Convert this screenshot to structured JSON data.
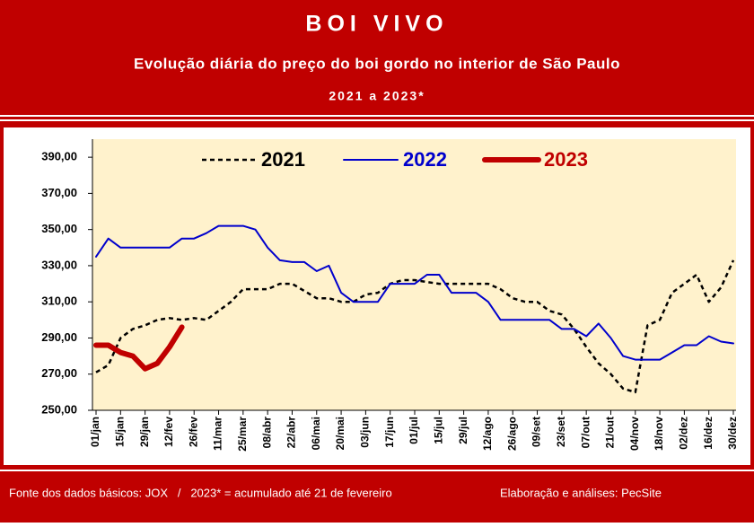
{
  "header": {
    "title": "BOI VIVO",
    "subtitle": "Evolução diária do preço do boi gordo no interior de São Paulo",
    "period": "2021 a 2023*"
  },
  "chart_data": {
    "type": "line",
    "categories": [
      "01/jan",
      null,
      "15/jan",
      null,
      "29/jan",
      null,
      "12/fev",
      null,
      "26/fev",
      null,
      "11/mar",
      null,
      "25/mar",
      null,
      "08/abr",
      null,
      "22/abr",
      null,
      "06/mai",
      null,
      "20/mai",
      null,
      "03/jun",
      null,
      "17/jun",
      null,
      "01/jul",
      null,
      "15/jul",
      null,
      "29/jul",
      null,
      "12/ago",
      null,
      "26/ago",
      null,
      "09/set",
      null,
      "23/set",
      null,
      "07/out",
      null,
      "21/out",
      null,
      "04/nov",
      null,
      "18/nov",
      null,
      "02/dez",
      null,
      "16/dez",
      null,
      "30/dez"
    ],
    "series": [
      {
        "name": "2021",
        "color": "#000000",
        "dashed": true,
        "width": 2.5,
        "values": [
          271,
          275,
          290,
          295,
          297,
          300,
          301,
          300,
          301,
          300,
          305,
          310,
          317,
          317,
          317,
          320,
          320,
          316,
          312,
          312,
          310,
          310,
          314,
          315,
          320,
          322,
          322,
          321,
          320,
          320,
          320,
          320,
          320,
          317,
          312,
          310,
          310,
          305,
          303,
          295,
          285,
          276,
          270,
          262,
          260,
          297,
          300,
          315,
          320,
          325,
          310,
          318,
          333
        ]
      },
      {
        "name": "2022",
        "color": "#0000cc",
        "dashed": false,
        "width": 2,
        "values": [
          335,
          345,
          340,
          340,
          340,
          340,
          340,
          345,
          345,
          348,
          352,
          352,
          352,
          350,
          340,
          333,
          332,
          332,
          327,
          330,
          315,
          310,
          310,
          310,
          320,
          320,
          320,
          325,
          325,
          315,
          315,
          315,
          310,
          300,
          300,
          300,
          300,
          300,
          295,
          295,
          291,
          298,
          290,
          280,
          278,
          278,
          278,
          282,
          286,
          286,
          291,
          288,
          287
        ]
      },
      {
        "name": "2023",
        "color": "#c00000",
        "dashed": false,
        "width": 6,
        "values": [
          286,
          286,
          282,
          280,
          273,
          276,
          285,
          296,
          null,
          null,
          null,
          null,
          null,
          null,
          null,
          null,
          null,
          null,
          null,
          null,
          null,
          null,
          null,
          null,
          null,
          null,
          null,
          null,
          null,
          null,
          null,
          null,
          null,
          null,
          null,
          null,
          null,
          null,
          null,
          null,
          null,
          null,
          null,
          null,
          null,
          null,
          null,
          null,
          null,
          null,
          null,
          null,
          null
        ]
      }
    ],
    "ylim": [
      250,
      400
    ],
    "yticks": [
      {
        "value": 250,
        "label": "250,00"
      },
      {
        "value": 270,
        "label": "270,00"
      },
      {
        "value": 290,
        "label": "290,00"
      },
      {
        "value": 310,
        "label": "310,00"
      },
      {
        "value": 330,
        "label": "330,00"
      },
      {
        "value": 350,
        "label": "350,00"
      },
      {
        "value": 370,
        "label": "370,00"
      },
      {
        "value": 390,
        "label": "390,00"
      }
    ],
    "grid": false
  },
  "footer": {
    "source": "Fonte dos dados básicos: JOX   /   2023* = acumulado até 21 de fevereiro",
    "credit": "Elaboração e análises: PecSite"
  }
}
